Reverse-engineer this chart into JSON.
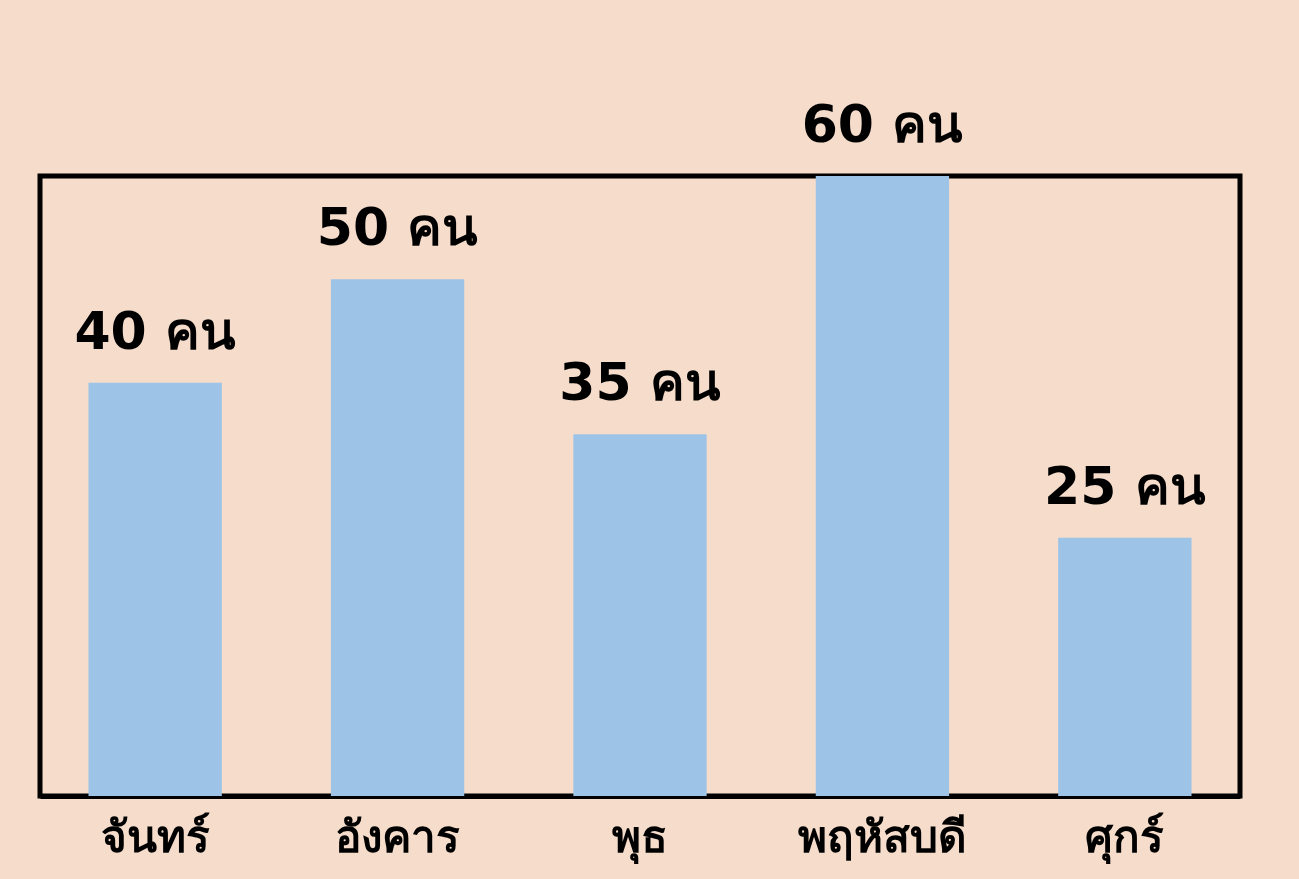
{
  "chart_data": {
    "type": "bar",
    "categories": [
      "จันทร์",
      "อังคาร",
      "พุธ",
      "พฤหัสบดี",
      "ศุกร์"
    ],
    "values": [
      40,
      50,
      35,
      60,
      25
    ],
    "color": "#9dc3e6",
    "value_labels": [
      "40 คน",
      "50 คน",
      "35 คน",
      "60 คน",
      "25 คน"
    ]
  }
}
